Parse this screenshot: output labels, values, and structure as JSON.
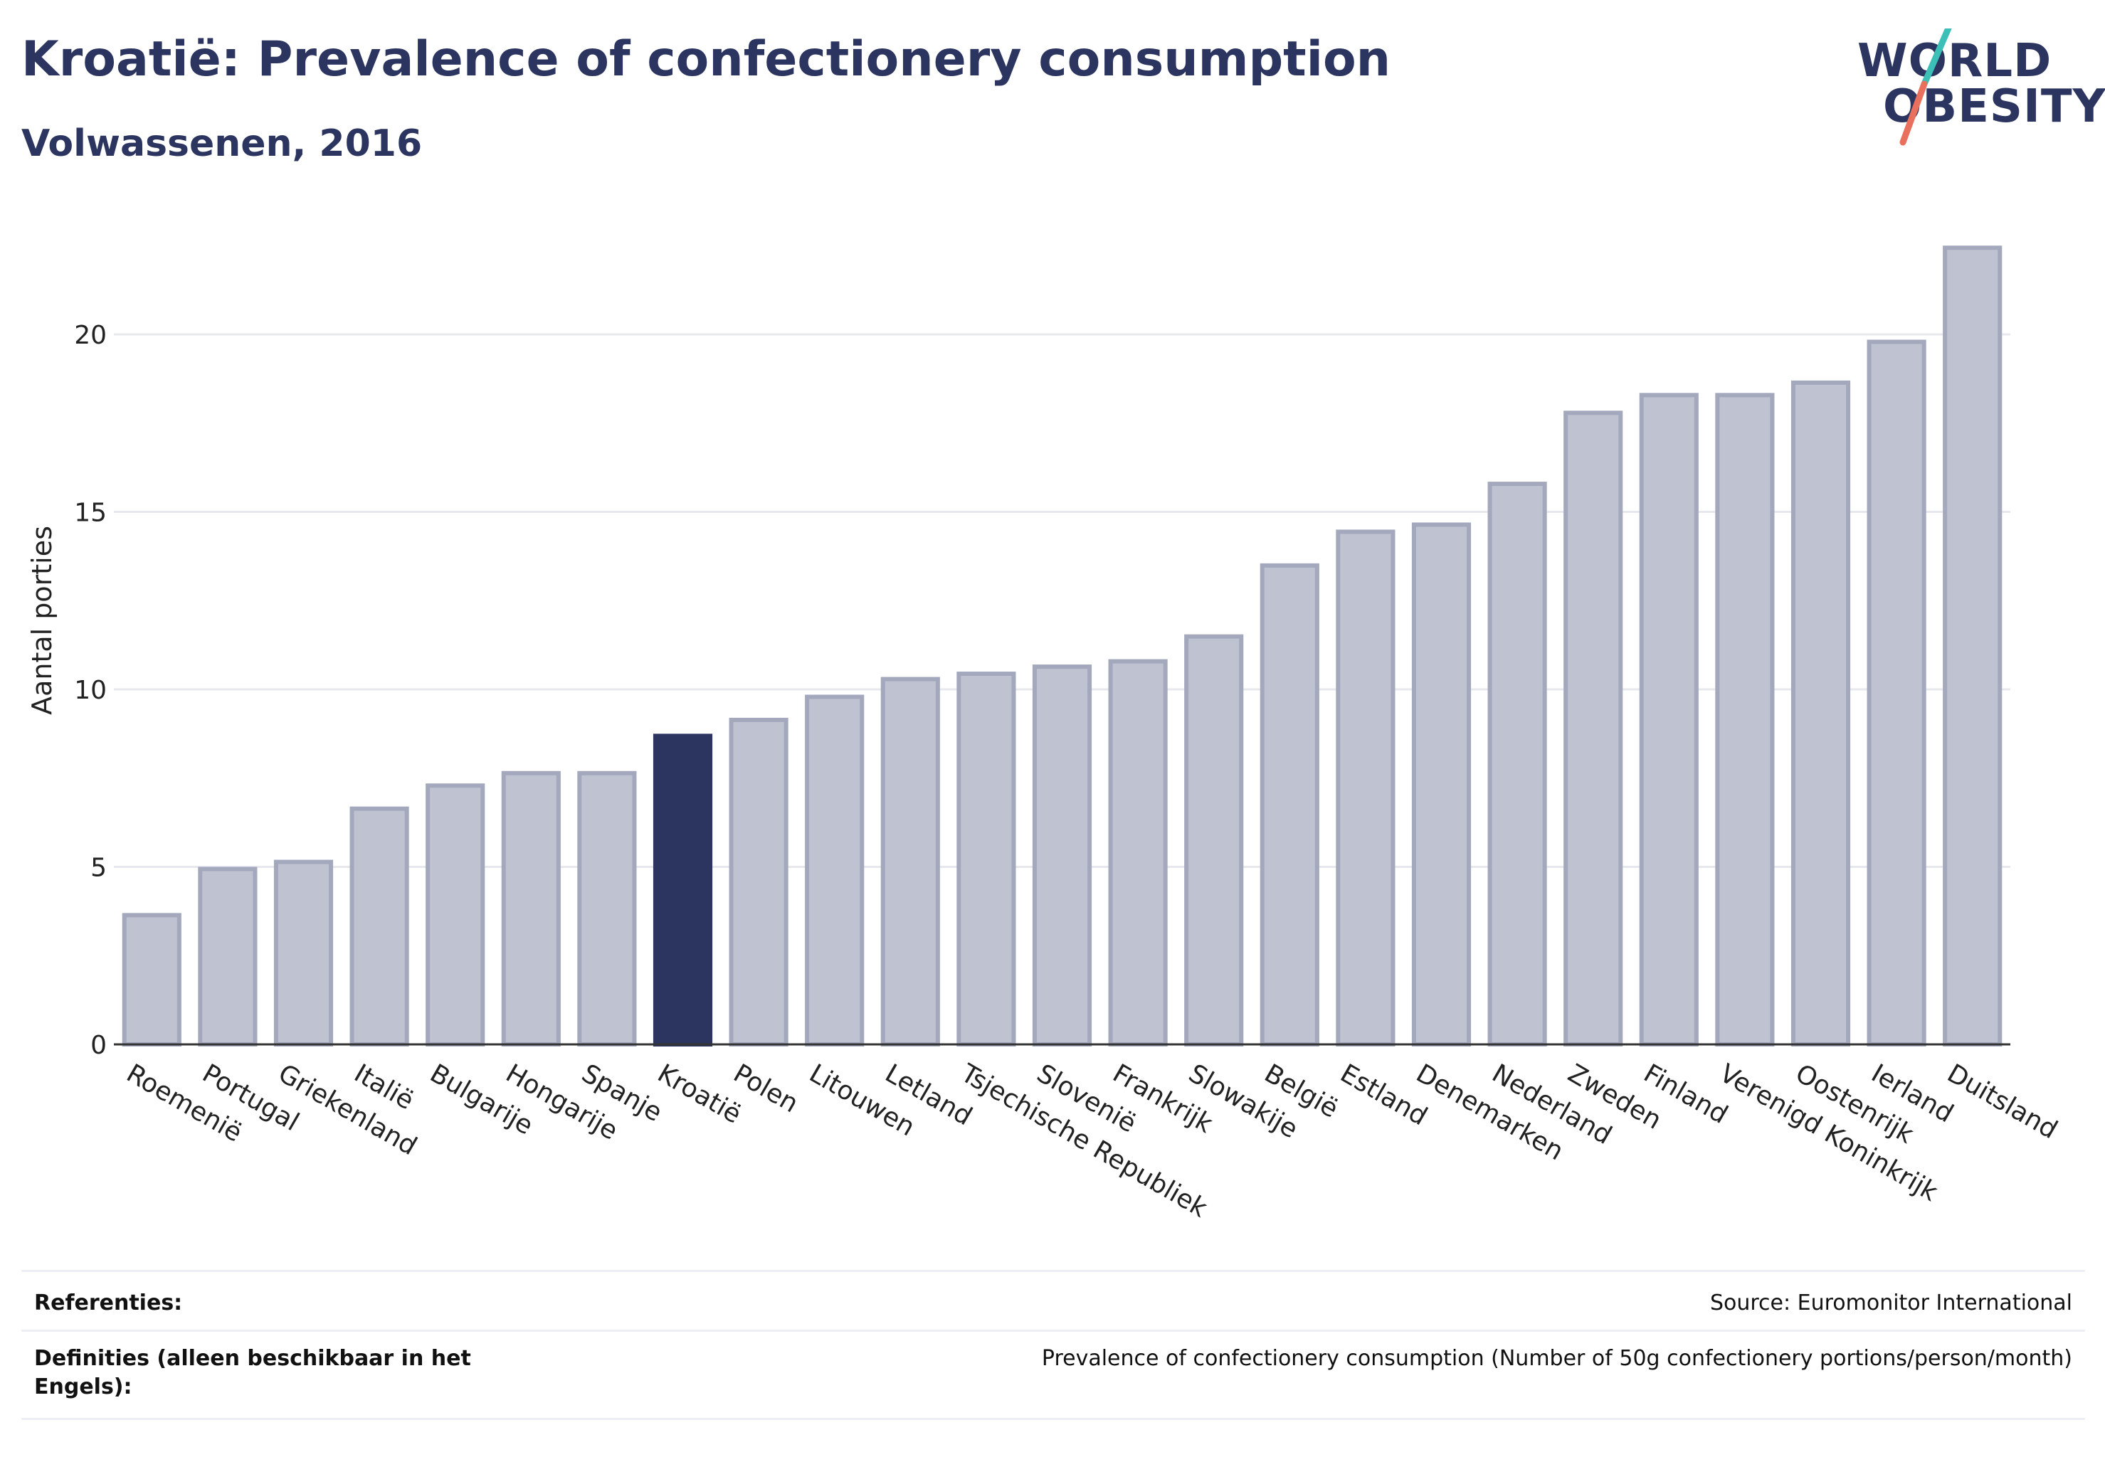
{
  "header": {
    "title": "Kroatië: Prevalence of confectionery consumption",
    "subtitle": "Volwassenen, 2016"
  },
  "logo": {
    "line1": "WORLD",
    "line2": "OBESITY",
    "accent_teal": "#3bbfb7",
    "accent_coral": "#e8705c"
  },
  "colors": {
    "bar": "#bfc2d0",
    "bar_border": "#a3a8bd",
    "highlight": "#2b3560",
    "text": "#2b3560",
    "grid": "#e6e8ee"
  },
  "chart_data": {
    "type": "bar",
    "ylabel": "Aantal porties",
    "ylim": [
      0,
      23
    ],
    "yticks": [
      0,
      5,
      10,
      15,
      20
    ],
    "grid": true,
    "highlight_category": "Kroatië",
    "categories": [
      "Roemenië",
      "Portugal",
      "Griekenland",
      "Italië",
      "Bulgarije",
      "Hongarije",
      "Spanje",
      "Kroatië",
      "Polen",
      "Litouwen",
      "Letland",
      "Tsjechische Republiek",
      "Slovenië",
      "Frankrijk",
      "Slowakije",
      "België",
      "Estland",
      "Denemarken",
      "Nederland",
      "Zweden",
      "Finland",
      "Verenigd Koninkrijk",
      "Oostenrijk",
      "Ierland",
      "Duitsland"
    ],
    "values": [
      3.7,
      5.0,
      5.2,
      6.7,
      7.35,
      7.7,
      7.7,
      8.75,
      9.2,
      9.85,
      10.35,
      10.5,
      10.7,
      10.85,
      11.55,
      13.55,
      14.5,
      14.7,
      15.85,
      17.85,
      18.35,
      18.35,
      18.7,
      19.85,
      22.5
    ]
  },
  "footer": {
    "references_label": "Referenties:",
    "references_value": "Source: Euromonitor International",
    "definitions_label": "Definities (alleen beschikbaar in het Engels):",
    "definitions_value": "Prevalence of confectionery consumption (Number of 50g confectionery portions/person/month)"
  }
}
